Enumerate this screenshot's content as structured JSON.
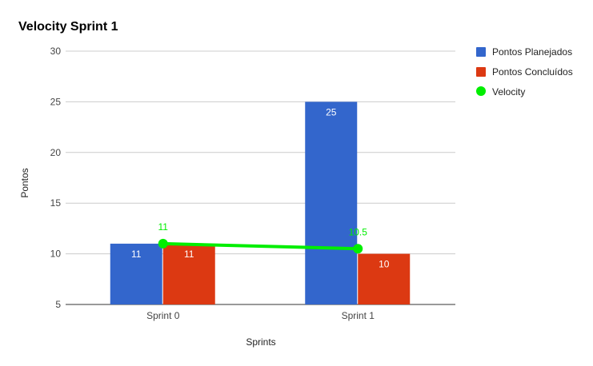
{
  "chart_data": {
    "type": "bar",
    "title": "Velocity Sprint 1",
    "xlabel": "Sprints",
    "ylabel": "Pontos",
    "categories": [
      "Sprint 0",
      "Sprint 1"
    ],
    "ylim": [
      5,
      30
    ],
    "yticks": [
      "30",
      "25",
      "20",
      "15",
      "10",
      "5"
    ],
    "grid": true,
    "legend_position": "right",
    "series": [
      {
        "name": "Pontos Planejados",
        "type": "bar",
        "color": "#3366cc",
        "values": [
          11,
          25
        ],
        "labels": [
          "11",
          "25"
        ]
      },
      {
        "name": "Pontos Concluídos",
        "type": "bar",
        "color": "#dc3912",
        "values": [
          11,
          10
        ],
        "labels": [
          "11",
          "10"
        ]
      },
      {
        "name": "Velocity",
        "type": "line",
        "color": "#00ee00",
        "values": [
          11,
          10.5
        ],
        "labels": [
          "11",
          "10.5"
        ]
      }
    ]
  }
}
